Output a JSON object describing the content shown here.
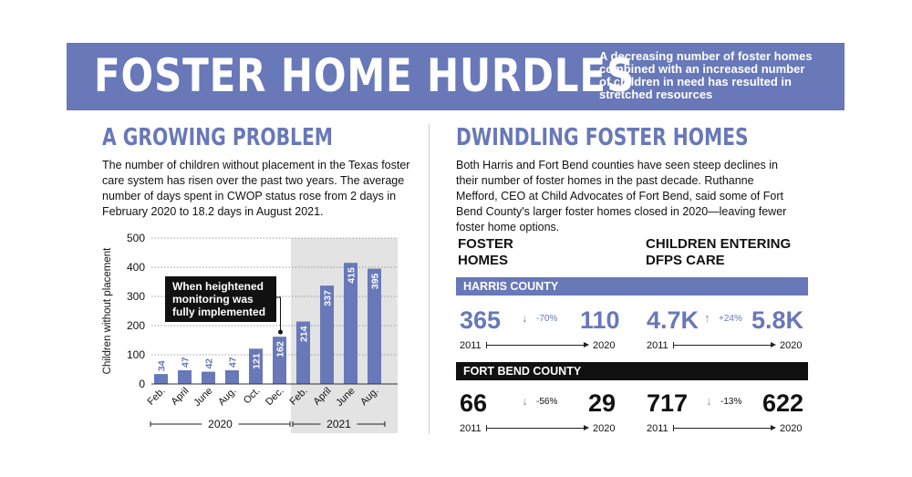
{
  "banner": {
    "title": "FOSTER HOME HURDLES",
    "subtitle": "A decreasing number of foster homes combined with an increased number of children in need has resulted in stretched resources"
  },
  "left": {
    "heading": "A GROWING PROBLEM",
    "paragraph": "The number of children without placement in the Texas foster care system has risen over the past two years. The average number of days spent in CWOP status rose from 2 days in February 2020 to 18.2 days in August 2021."
  },
  "right": {
    "heading": "DWINDLING FOSTER HOMES",
    "paragraph": "Both Harris and Fort Bend counties have seen steep declines in their number of foster homes in the past decade. Ruthanne Mefford, CEO at Child Advocates of Fort Bend, said some of Fort Bend County's larger foster homes closed in 2020—leaving fewer foster home options.",
    "col1_heading_line1": "FOSTER",
    "col1_heading_line2": "HOMES",
    "col2_heading_line1": "CHILDREN ENTERING",
    "col2_heading_line2": "DFPS CARE"
  },
  "counties": [
    {
      "name": "HARRIS COUNTY",
      "homes": {
        "start": "365",
        "end": "110",
        "change": "-70%",
        "arrow": "↓"
      },
      "care": {
        "start": "4.7K",
        "end": "5.8K",
        "change": "+24%",
        "arrow": "↑"
      },
      "start_year": "2011",
      "end_year": "2020"
    },
    {
      "name": "FORT BEND COUNTY",
      "homes": {
        "start": "66",
        "end": "29",
        "change": "-56%",
        "arrow": "↓"
      },
      "care": {
        "start": "717",
        "end": "622",
        "change": "-13%",
        "arrow": "↓"
      },
      "start_year": "2011",
      "end_year": "2020"
    }
  ],
  "chart_data": {
    "type": "bar",
    "ylabel": "Children without placement",
    "ylim": [
      0,
      500
    ],
    "yticks": [
      0,
      100,
      200,
      300,
      400,
      500
    ],
    "categories": [
      "Feb.",
      "April",
      "June",
      "Aug.",
      "Oct.",
      "Dec.",
      "Feb.",
      "April",
      "June",
      "Aug."
    ],
    "values": [
      34,
      47,
      42,
      47,
      121,
      162,
      214,
      337,
      415,
      395
    ],
    "groups": [
      {
        "label": "2020",
        "count": 6
      },
      {
        "label": "2021",
        "count": 4
      }
    ],
    "annotation": {
      "text": "When heightened monitoring was fully implemented",
      "category_index": 5
    },
    "highlight_group": "2021",
    "grid": true,
    "colors": {
      "bar": "#6878b8",
      "highlight_bg": "#e3e3e3",
      "grid": "#9a9a9a",
      "accent": "#6878b8"
    }
  }
}
